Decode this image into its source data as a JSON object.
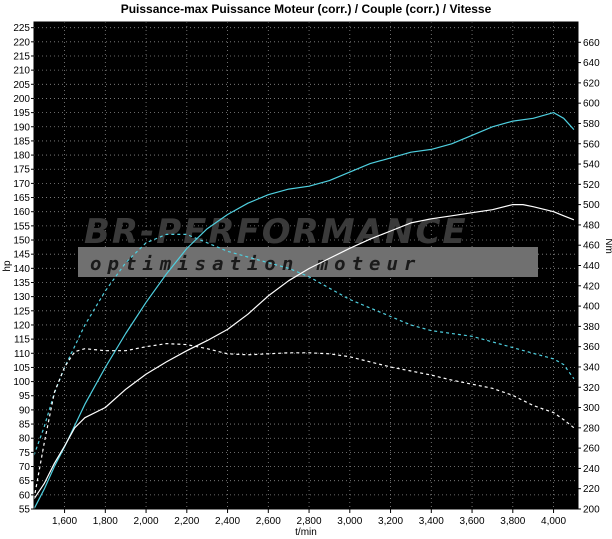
{
  "chart_data": {
    "type": "line",
    "title": "Puissance-max Puissance Moteur (corr.) / Couple (corr.) / Vitesse",
    "xlabel": "t/min",
    "ylabel_left": "hp",
    "ylabel_right": "Nm",
    "xlim": [
      1450,
      4120
    ],
    "ylim_left": [
      55,
      227
    ],
    "ylim_right": [
      200,
      680
    ],
    "x_ticks": [
      "1,600",
      "1,800",
      "2,000",
      "2,200",
      "2,400",
      "2,600",
      "2,800",
      "3,000",
      "3,200",
      "3,400",
      "3,600",
      "3,800",
      "4,000"
    ],
    "x_tick_values": [
      1600,
      1800,
      2000,
      2200,
      2400,
      2600,
      2800,
      3000,
      3200,
      3400,
      3600,
      3800,
      4000
    ],
    "y_left_ticks": [
      55,
      60,
      65,
      70,
      75,
      80,
      85,
      90,
      95,
      100,
      105,
      110,
      115,
      120,
      125,
      130,
      135,
      140,
      145,
      150,
      155,
      160,
      165,
      170,
      175,
      180,
      185,
      190,
      195,
      200,
      205,
      210,
      215,
      220,
      225
    ],
    "y_right_ticks": [
      200,
      220,
      240,
      260,
      280,
      300,
      320,
      340,
      360,
      380,
      400,
      420,
      440,
      460,
      480,
      500,
      520,
      540,
      560,
      580,
      600,
      620,
      640,
      660
    ],
    "grid": true,
    "background": "#000000",
    "watermark": {
      "line1": "BR-PERFORMANCE",
      "line2": "optimisation moteur"
    },
    "series": [
      {
        "axis": "left",
        "style": "solid",
        "color": "#4fd0e0",
        "x": [
          1450,
          1500,
          1550,
          1600,
          1700,
          1800,
          1900,
          2000,
          2100,
          2200,
          2300,
          2400,
          2500,
          2600,
          2700,
          2800,
          2900,
          3000,
          3100,
          3200,
          3300,
          3400,
          3500,
          3600,
          3700,
          3800,
          3900,
          4000,
          4050,
          4100
        ],
        "y": [
          55,
          62,
          70,
          77,
          92,
          105,
          117,
          128,
          138,
          147,
          154,
          159,
          163,
          166,
          168,
          169,
          171,
          174,
          177,
          179,
          181,
          182,
          184,
          187,
          190,
          192,
          193,
          195,
          193,
          189
        ]
      },
      {
        "axis": "left",
        "style": "dashed",
        "color": "#4fd0e0",
        "x": [
          1450,
          1500,
          1550,
          1600,
          1700,
          1800,
          1900,
          2000,
          2100,
          2200,
          2300,
          2400,
          2500,
          2600,
          2700,
          2800,
          2900,
          3000,
          3100,
          3200,
          3300,
          3400,
          3500,
          3600,
          3700,
          3800,
          3900,
          4000,
          4050,
          4100
        ],
        "y": [
          74,
          84,
          96,
          105,
          120,
          132,
          142,
          149,
          152,
          152,
          149,
          146,
          144,
          142,
          140,
          137,
          133,
          129,
          126,
          123,
          120,
          118,
          117,
          116,
          114,
          112,
          110,
          108,
          106,
          101
        ]
      },
      {
        "axis": "right",
        "style": "solid",
        "color": "#ffffff",
        "x": [
          1450,
          1500,
          1550,
          1600,
          1650,
          1700,
          1800,
          1900,
          2000,
          2100,
          2200,
          2300,
          2400,
          2500,
          2600,
          2700,
          2800,
          2900,
          3000,
          3100,
          3200,
          3300,
          3400,
          3500,
          3600,
          3700,
          3800,
          3850,
          3900,
          4000,
          4050,
          4100
        ],
        "y": [
          210,
          225,
          245,
          262,
          280,
          290,
          300,
          318,
          333,
          345,
          356,
          366,
          377,
          392,
          410,
          425,
          437,
          447,
          457,
          466,
          474,
          482,
          486,
          489,
          492,
          495,
          500,
          500,
          498,
          493,
          489,
          485
        ]
      },
      {
        "axis": "right",
        "style": "dashed",
        "color": "#ffffff",
        "x": [
          1450,
          1500,
          1550,
          1600,
          1650,
          1700,
          1800,
          1900,
          2000,
          2100,
          2200,
          2300,
          2400,
          2500,
          2600,
          2700,
          2800,
          2900,
          3000,
          3100,
          3200,
          3300,
          3400,
          3500,
          3600,
          3700,
          3800,
          3900,
          4000,
          4050,
          4100
        ],
        "y": [
          210,
          265,
          315,
          340,
          355,
          358,
          356,
          356,
          360,
          363,
          362,
          358,
          353,
          352,
          353,
          354,
          354,
          353,
          350,
          345,
          340,
          336,
          332,
          327,
          323,
          319,
          312,
          302,
          295,
          288,
          280
        ]
      }
    ]
  }
}
